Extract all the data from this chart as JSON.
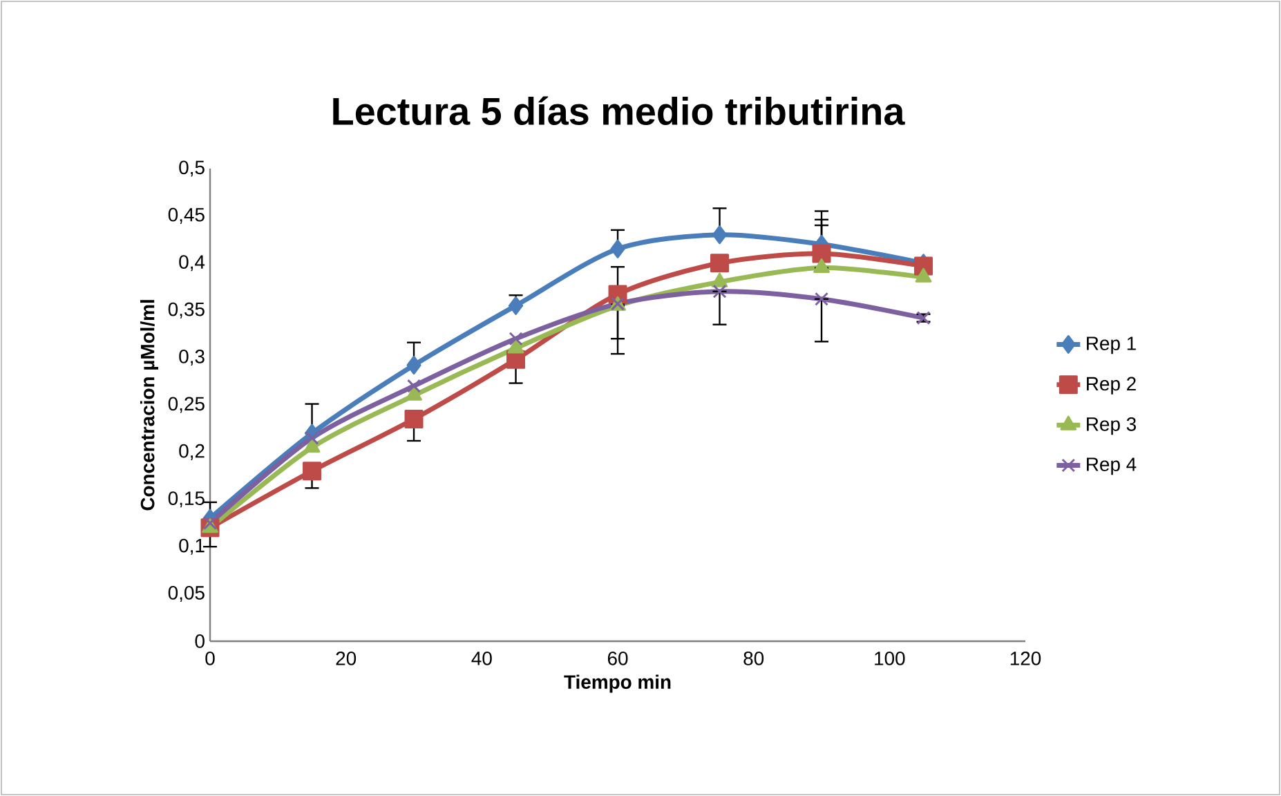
{
  "chart_data": {
    "type": "line",
    "title": "Lectura 5 días medio tributirina",
    "xlabel": "Tiempo min",
    "ylabel": "Concentracion µMol/ml",
    "x": [
      0,
      15,
      30,
      45,
      60,
      75,
      90,
      105
    ],
    "xlim": [
      0,
      120
    ],
    "xticks": [
      0,
      20,
      40,
      60,
      80,
      100,
      120
    ],
    "ylim": [
      0,
      0.5
    ],
    "yticks": [
      {
        "value": 0,
        "label": "0"
      },
      {
        "value": 0.05,
        "label": "0,05"
      },
      {
        "value": 0.1,
        "label": "0,1"
      },
      {
        "value": 0.15,
        "label": "0,15"
      },
      {
        "value": 0.2,
        "label": "0,2"
      },
      {
        "value": 0.25,
        "label": "0,25"
      },
      {
        "value": 0.3,
        "label": "0,3"
      },
      {
        "value": 0.35,
        "label": "0,35"
      },
      {
        "value": 0.4,
        "label": "0,4"
      },
      {
        "value": 0.45,
        "label": "0,45"
      },
      {
        "value": 0.5,
        "label": "0,5"
      }
    ],
    "grid": false,
    "legend": "right",
    "line_style": "solid",
    "series": [
      {
        "name": "Rep 1",
        "color": "#4a7ebb",
        "marker": "diamond",
        "values": [
          0.13,
          0.22,
          0.292,
          0.355,
          0.415,
          0.43,
          0.42,
          0.4
        ],
        "errors": [
          [
            0.13,
            0.147
          ],
          [
            0.22,
            0.251
          ],
          [
            0.292,
            0.316
          ],
          [
            0.355,
            0.366
          ],
          [
            0.415,
            0.435
          ],
          [
            0.43,
            0.458
          ],
          [
            0.42,
            0.455
          ],
          null
        ]
      },
      {
        "name": "Rep 2",
        "color": "#be4b48",
        "marker": "square",
        "values": [
          0.12,
          0.18,
          0.235,
          0.298,
          0.367,
          0.4,
          0.41,
          0.397
        ],
        "errors": [
          [
            0.1,
            0.12
          ],
          [
            0.162,
            0.18
          ],
          [
            0.212,
            0.235
          ],
          [
            0.273,
            0.298
          ],
          [
            0.304,
            0.367
          ],
          null,
          [
            0.41,
            0.446
          ],
          null
        ]
      },
      {
        "name": "Rep 3",
        "color": "#98b954",
        "marker": "triangle",
        "values": [
          0.12,
          0.205,
          0.26,
          0.31,
          0.355,
          0.38,
          0.395,
          0.385
        ],
        "errors": [
          null,
          null,
          null,
          null,
          [
            0.32,
            0.355
          ],
          null,
          [
            0.395,
            0.44
          ],
          null
        ]
      },
      {
        "name": "Rep 4",
        "color": "#7d60a0",
        "marker": "cross",
        "values": [
          0.125,
          0.215,
          0.27,
          0.32,
          0.357,
          0.37,
          0.362,
          0.342
        ],
        "errors": [
          null,
          null,
          null,
          null,
          [
            0.357,
            0.396
          ],
          [
            0.335,
            0.37
          ],
          [
            0.317,
            0.362
          ],
          [
            0.338,
            0.346
          ]
        ]
      }
    ]
  }
}
